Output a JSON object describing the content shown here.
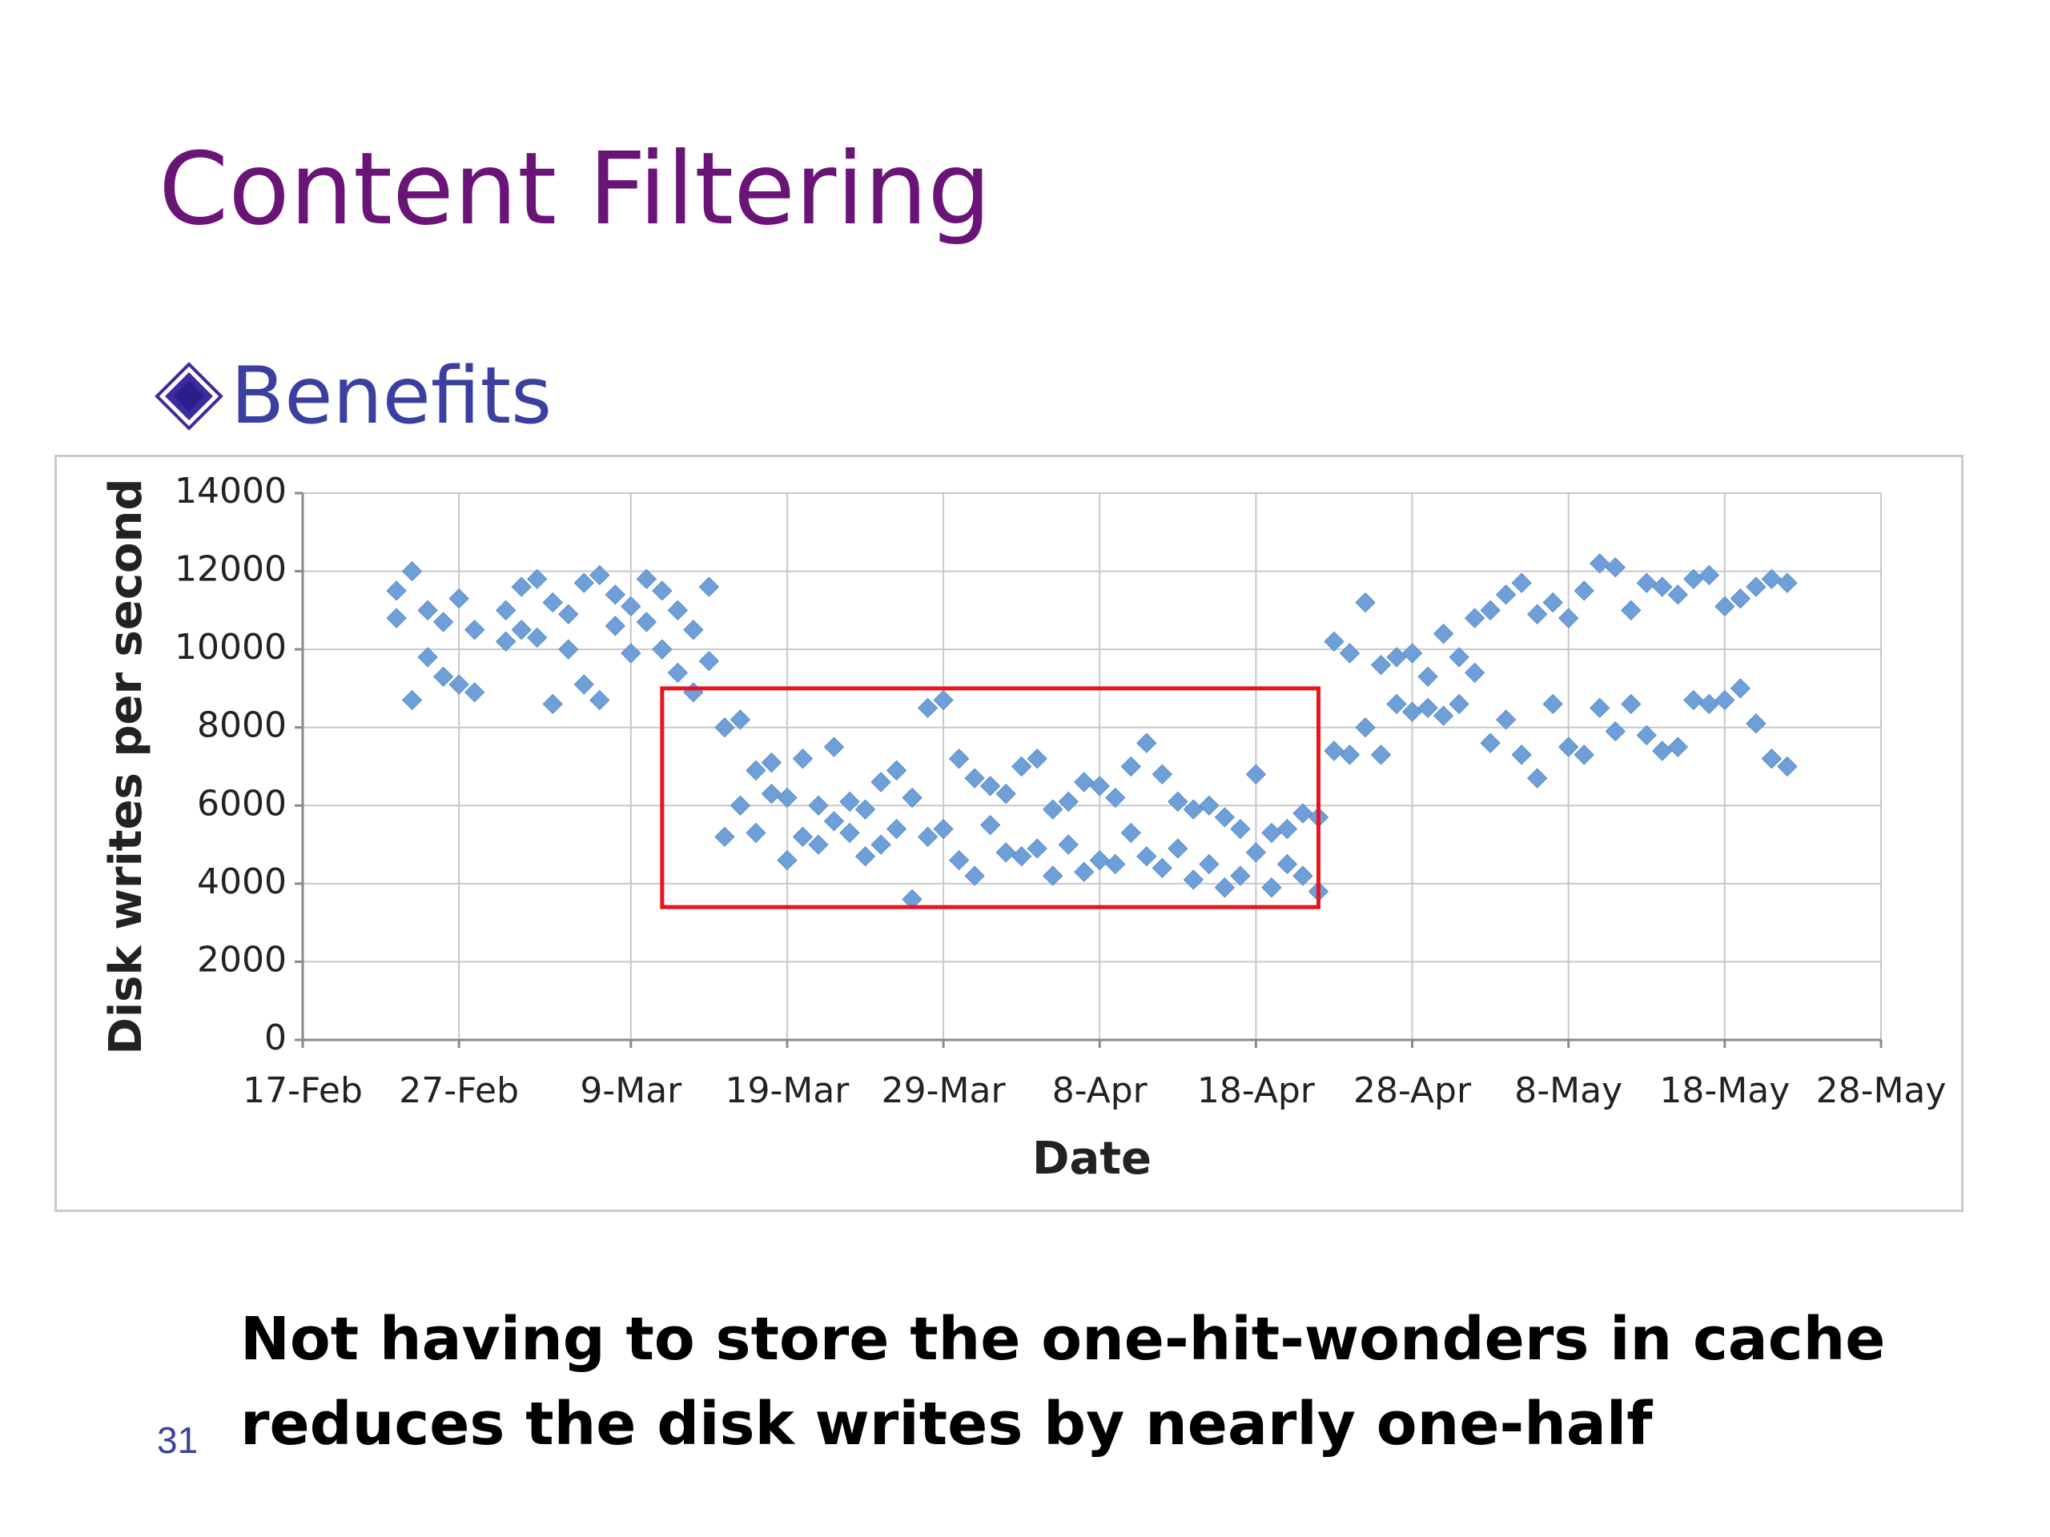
{
  "slide": {
    "title": "Content Filtering",
    "bullet": "Benefits",
    "caption": "Not having to store the one-hit-wonders in cache reduces the disk writes by nearly one-half",
    "slide_number": "31"
  },
  "colors": {
    "title": "#6a1478",
    "bullet": "#3a3fa0",
    "marker": "#6e9fd8",
    "highlight_box": "#e8141e",
    "grid": "#c8c8c8"
  },
  "chart_data": {
    "type": "scatter",
    "title": "",
    "xlabel": "Date",
    "ylabel": "Disk writes per second",
    "xlim": [
      "17-Feb",
      "28-May"
    ],
    "ylim": [
      0,
      14000
    ],
    "x_ticks": [
      "17-Feb",
      "27-Feb",
      "9-Mar",
      "19-Mar",
      "29-Mar",
      "8-Apr",
      "18-Apr",
      "28-Apr",
      "8-May",
      "18-May",
      "28-May"
    ],
    "y_ticks": [
      0,
      2000,
      4000,
      6000,
      8000,
      10000,
      12000,
      14000
    ],
    "grid": true,
    "legend": "none",
    "marker": "diamond",
    "highlight_box": {
      "x": [
        "11-Mar",
        "22-Apr"
      ],
      "y": [
        3400,
        9000
      ]
    },
    "series": [
      {
        "name": "",
        "points": [
          [
            "23-Feb",
            11500
          ],
          [
            "23-Feb",
            10800
          ],
          [
            "24-Feb",
            12000
          ],
          [
            "24-Feb",
            8700
          ],
          [
            "25-Feb",
            11000
          ],
          [
            "25-Feb",
            9800
          ],
          [
            "26-Feb",
            10700
          ],
          [
            "26-Feb",
            9300
          ],
          [
            "27-Feb",
            11300
          ],
          [
            "27-Feb",
            9100
          ],
          [
            "28-Feb",
            10500
          ],
          [
            "28-Feb",
            8900
          ],
          [
            "1-Mar",
            11000
          ],
          [
            "1-Mar",
            10200
          ],
          [
            "2-Mar",
            11600
          ],
          [
            "2-Mar",
            10500
          ],
          [
            "3-Mar",
            11800
          ],
          [
            "3-Mar",
            10300
          ],
          [
            "4-Mar",
            11200
          ],
          [
            "4-Mar",
            8600
          ],
          [
            "5-Mar",
            10900
          ],
          [
            "5-Mar",
            10000
          ],
          [
            "6-Mar",
            11700
          ],
          [
            "6-Mar",
            9100
          ],
          [
            "7-Mar",
            11900
          ],
          [
            "7-Mar",
            8700
          ],
          [
            "8-Mar",
            11400
          ],
          [
            "8-Mar",
            10600
          ],
          [
            "9-Mar",
            11100
          ],
          [
            "9-Mar",
            9900
          ],
          [
            "10-Mar",
            11800
          ],
          [
            "10-Mar",
            10700
          ],
          [
            "11-Mar",
            11500
          ],
          [
            "11-Mar",
            10000
          ],
          [
            "12-Mar",
            11000
          ],
          [
            "12-Mar",
            9400
          ],
          [
            "13-Mar",
            10500
          ],
          [
            "13-Mar",
            8900
          ],
          [
            "14-Mar",
            11600
          ],
          [
            "14-Mar",
            9700
          ],
          [
            "15-Mar",
            8000
          ],
          [
            "15-Mar",
            5200
          ],
          [
            "16-Mar",
            8200
          ],
          [
            "16-Mar",
            6000
          ],
          [
            "17-Mar",
            6900
          ],
          [
            "17-Mar",
            5300
          ],
          [
            "18-Mar",
            7100
          ],
          [
            "18-Mar",
            6300
          ],
          [
            "19-Mar",
            6200
          ],
          [
            "19-Mar",
            4600
          ],
          [
            "20-Mar",
            7200
          ],
          [
            "20-Mar",
            5200
          ],
          [
            "21-Mar",
            6000
          ],
          [
            "21-Mar",
            5000
          ],
          [
            "22-Mar",
            7500
          ],
          [
            "22-Mar",
            5600
          ],
          [
            "23-Mar",
            6100
          ],
          [
            "23-Mar",
            5300
          ],
          [
            "24-Mar",
            5900
          ],
          [
            "24-Mar",
            4700
          ],
          [
            "25-Mar",
            6600
          ],
          [
            "25-Mar",
            5000
          ],
          [
            "26-Mar",
            6900
          ],
          [
            "26-Mar",
            5400
          ],
          [
            "27-Mar",
            6200
          ],
          [
            "27-Mar",
            3600
          ],
          [
            "28-Mar",
            8500
          ],
          [
            "28-Mar",
            5200
          ],
          [
            "29-Mar",
            8700
          ],
          [
            "29-Mar",
            5400
          ],
          [
            "30-Mar",
            7200
          ],
          [
            "30-Mar",
            4600
          ],
          [
            "31-Mar",
            6700
          ],
          [
            "31-Mar",
            4200
          ],
          [
            "1-Apr",
            6500
          ],
          [
            "1-Apr",
            5500
          ],
          [
            "2-Apr",
            6300
          ],
          [
            "2-Apr",
            4800
          ],
          [
            "3-Apr",
            7000
          ],
          [
            "3-Apr",
            4700
          ],
          [
            "4-Apr",
            7200
          ],
          [
            "4-Apr",
            4900
          ],
          [
            "5-Apr",
            5900
          ],
          [
            "5-Apr",
            4200
          ],
          [
            "6-Apr",
            6100
          ],
          [
            "6-Apr",
            5000
          ],
          [
            "7-Apr",
            6600
          ],
          [
            "7-Apr",
            4300
          ],
          [
            "8-Apr",
            6500
          ],
          [
            "8-Apr",
            4600
          ],
          [
            "9-Apr",
            6200
          ],
          [
            "9-Apr",
            4500
          ],
          [
            "10-Apr",
            7000
          ],
          [
            "10-Apr",
            5300
          ],
          [
            "11-Apr",
            7600
          ],
          [
            "11-Apr",
            4700
          ],
          [
            "12-Apr",
            6800
          ],
          [
            "12-Apr",
            4400
          ],
          [
            "13-Apr",
            6100
          ],
          [
            "13-Apr",
            4900
          ],
          [
            "14-Apr",
            5900
          ],
          [
            "14-Apr",
            4100
          ],
          [
            "15-Apr",
            6000
          ],
          [
            "15-Apr",
            4500
          ],
          [
            "16-Apr",
            5700
          ],
          [
            "16-Apr",
            3900
          ],
          [
            "17-Apr",
            5400
          ],
          [
            "17-Apr",
            4200
          ],
          [
            "18-Apr",
            6800
          ],
          [
            "18-Apr",
            4800
          ],
          [
            "19-Apr",
            5300
          ],
          [
            "19-Apr",
            3900
          ],
          [
            "20-Apr",
            5400
          ],
          [
            "20-Apr",
            4500
          ],
          [
            "21-Apr",
            5800
          ],
          [
            "21-Apr",
            4200
          ],
          [
            "22-Apr",
            5700
          ],
          [
            "22-Apr",
            3800
          ],
          [
            "23-Apr",
            10200
          ],
          [
            "23-Apr",
            7400
          ],
          [
            "24-Apr",
            9900
          ],
          [
            "24-Apr",
            7300
          ],
          [
            "25-Apr",
            11200
          ],
          [
            "25-Apr",
            8000
          ],
          [
            "26-Apr",
            9600
          ],
          [
            "26-Apr",
            7300
          ],
          [
            "27-Apr",
            9800
          ],
          [
            "27-Apr",
            8600
          ],
          [
            "28-Apr",
            9900
          ],
          [
            "28-Apr",
            8400
          ],
          [
            "29-Apr",
            9300
          ],
          [
            "29-Apr",
            8500
          ],
          [
            "30-Apr",
            10400
          ],
          [
            "30-Apr",
            8300
          ],
          [
            "1-May",
            9800
          ],
          [
            "1-May",
            8600
          ],
          [
            "2-May",
            10800
          ],
          [
            "2-May",
            9400
          ],
          [
            "3-May",
            11000
          ],
          [
            "3-May",
            7600
          ],
          [
            "4-May",
            11400
          ],
          [
            "4-May",
            8200
          ],
          [
            "5-May",
            11700
          ],
          [
            "5-May",
            7300
          ],
          [
            "6-May",
            10900
          ],
          [
            "6-May",
            6700
          ],
          [
            "7-May",
            11200
          ],
          [
            "7-May",
            8600
          ],
          [
            "8-May",
            10800
          ],
          [
            "8-May",
            7500
          ],
          [
            "9-May",
            11500
          ],
          [
            "9-May",
            7300
          ],
          [
            "10-May",
            12200
          ],
          [
            "10-May",
            8500
          ],
          [
            "11-May",
            12100
          ],
          [
            "11-May",
            7900
          ],
          [
            "12-May",
            11000
          ],
          [
            "12-May",
            8600
          ],
          [
            "13-May",
            11700
          ],
          [
            "13-May",
            7800
          ],
          [
            "14-May",
            11600
          ],
          [
            "14-May",
            7400
          ],
          [
            "15-May",
            11400
          ],
          [
            "15-May",
            7500
          ],
          [
            "16-May",
            11800
          ],
          [
            "16-May",
            8700
          ],
          [
            "17-May",
            11900
          ],
          [
            "17-May",
            8600
          ],
          [
            "18-May",
            11100
          ],
          [
            "18-May",
            8700
          ],
          [
            "19-May",
            11300
          ],
          [
            "19-May",
            9000
          ],
          [
            "20-May",
            11600
          ],
          [
            "20-May",
            8100
          ],
          [
            "21-May",
            11800
          ],
          [
            "21-May",
            7200
          ],
          [
            "22-May",
            11700
          ],
          [
            "22-May",
            7000
          ]
        ]
      }
    ]
  }
}
